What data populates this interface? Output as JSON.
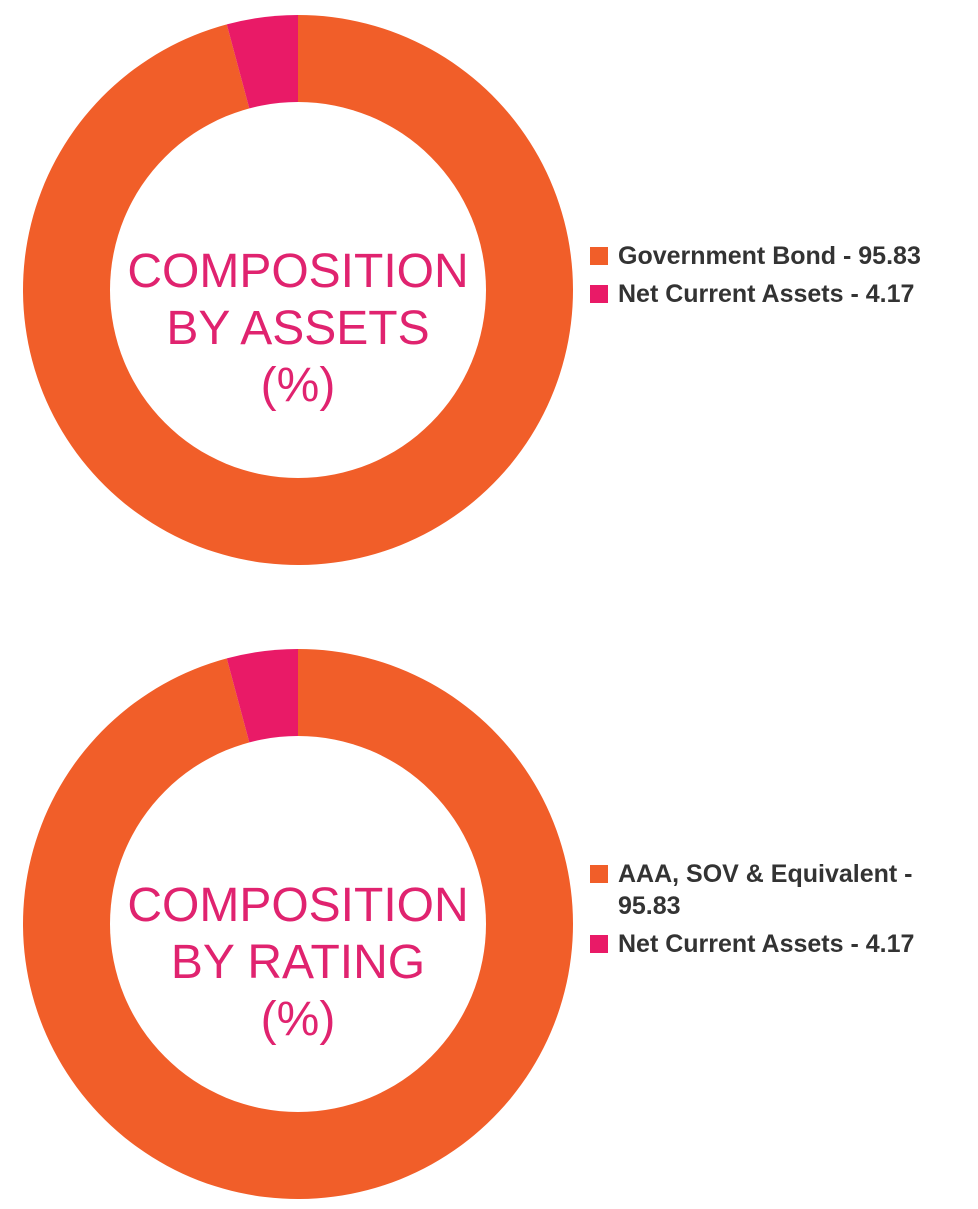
{
  "colors": {
    "orange": "#f15e29",
    "pink": "#e91a67",
    "title": "#e0236f"
  },
  "chart_data": [
    {
      "type": "pie",
      "donut": true,
      "title_lines": [
        "COMPOSITION",
        "BY ASSETS",
        "(%)"
      ],
      "categories": [
        "Government Bond",
        "Net Current Assets"
      ],
      "values": [
        95.83,
        4.17
      ],
      "colors": [
        "#f15e29",
        "#e91a67"
      ],
      "legend": [
        "Government Bond - 95.83",
        "Net Current Assets - 4.17"
      ],
      "legend_position": "right"
    },
    {
      "type": "pie",
      "donut": true,
      "title_lines": [
        "COMPOSITION",
        "BY RATING",
        "(%)"
      ],
      "categories": [
        "AAA, SOV & Equivalent",
        "Net Current Assets"
      ],
      "values": [
        95.83,
        4.17
      ],
      "colors": [
        "#f15e29",
        "#e91a67"
      ],
      "legend": [
        "AAA, SOV & Equivalent - 95.83",
        "Net Current Assets - 4.17"
      ],
      "legend_position": "right"
    }
  ]
}
